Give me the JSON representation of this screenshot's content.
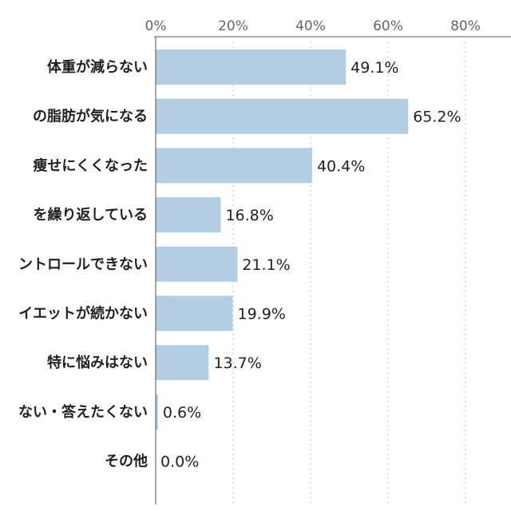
{
  "chart_data": {
    "type": "bar",
    "orientation": "horizontal",
    "title": "",
    "xlabel": "",
    "ylabel": "",
    "xlim": [
      0,
      90
    ],
    "x_ticks": [
      "0%",
      "20%",
      "40%",
      "60%",
      "80%"
    ],
    "grid": true,
    "categories": [
      "体重が減らない",
      "の脂肪が気になる",
      "痩せにくくなった",
      "を繰り返している",
      "ントロールできない",
      "イエットが続かない",
      "特に悩みはない",
      "ない・答えたくない",
      "その他"
    ],
    "values": [
      49.1,
      65.2,
      40.4,
      16.8,
      21.1,
      19.9,
      13.7,
      0.6,
      0.0
    ],
    "value_labels": [
      "49.1%",
      "65.2%",
      "40.4%",
      "16.8%",
      "21.1%",
      "19.9%",
      "13.7%",
      "0.6%",
      "0.0%"
    ],
    "colors": {
      "bar": "#b3cde3",
      "grid": "#d9d9d9",
      "axis": "#555555"
    }
  }
}
